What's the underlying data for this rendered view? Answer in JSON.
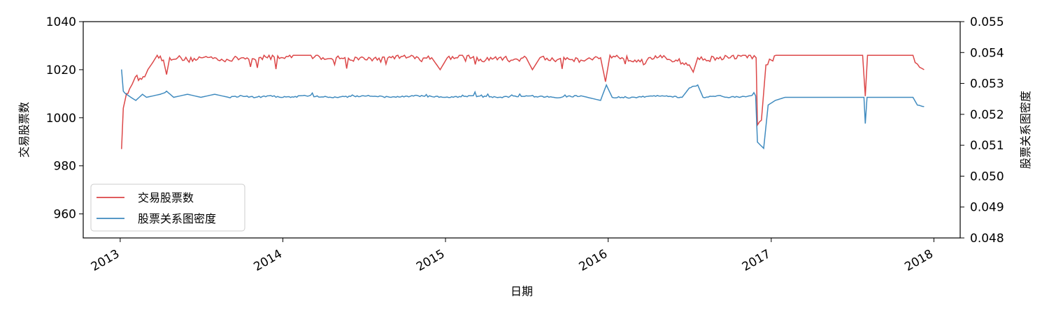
{
  "chart_data": {
    "type": "line",
    "xlabel": "日期",
    "ylabel_left": "交易股票数",
    "ylabel_right": "股票关系图密度",
    "x_ticks": [
      "2013",
      "2014",
      "2015",
      "2016",
      "2017",
      "2018"
    ],
    "y_left_ticks": [
      "960",
      "980",
      "1000",
      "1020",
      "1040"
    ],
    "y_right_ticks": [
      "0.048",
      "0.049",
      "0.050",
      "0.051",
      "0.052",
      "0.053",
      "0.054",
      "0.055"
    ],
    "xlim": [
      "2012-10-10",
      "2018-03-01"
    ],
    "ylim_left": [
      950,
      1040
    ],
    "ylim_right": [
      0.048,
      0.055
    ],
    "grid": false,
    "legend_position": "lower-left",
    "colors": {
      "series_left": "#d62728",
      "series_right": "#1f77b4"
    },
    "series": [
      {
        "name": "交易股票数",
        "axis": "left",
        "points": [
          [
            "2013-01-04",
            987
          ],
          [
            "2013-01-08",
            1004
          ],
          [
            "2013-01-15",
            1010
          ],
          [
            "2013-01-22",
            1012
          ],
          [
            "2013-01-28",
            1014
          ],
          [
            "2013-02-04",
            1017
          ],
          [
            "2013-02-18",
            1016
          ],
          [
            "2013-02-25",
            1017
          ],
          [
            "2013-03-04",
            1020
          ],
          [
            "2013-03-15",
            1023
          ],
          [
            "2013-03-25",
            1026
          ],
          [
            "2013-04-08",
            1024
          ],
          [
            "2013-04-15",
            1018
          ],
          [
            "2013-04-22",
            1025
          ],
          [
            "2013-05-10",
            1025
          ],
          [
            "2013-06-01",
            1024
          ],
          [
            "2013-07-01",
            1025
          ],
          [
            "2013-08-01",
            1025
          ],
          [
            "2013-09-01",
            1024
          ],
          [
            "2013-10-01",
            1025
          ],
          [
            "2013-11-01",
            1024
          ],
          [
            "2013-12-01",
            1026
          ],
          [
            "2014-01-01",
            1025
          ],
          [
            "2014-02-01",
            1026
          ],
          [
            "2014-03-01",
            1026
          ],
          [
            "2014-04-01",
            1025
          ],
          [
            "2014-05-01",
            1025
          ],
          [
            "2014-06-01",
            1024
          ],
          [
            "2014-07-01",
            1025
          ],
          [
            "2014-08-01",
            1024
          ],
          [
            "2014-09-01",
            1025
          ],
          [
            "2014-10-01",
            1026
          ],
          [
            "2014-11-01",
            1025
          ],
          [
            "2014-12-01",
            1025
          ],
          [
            "2014-12-20",
            1020
          ],
          [
            "2015-01-05",
            1025
          ],
          [
            "2015-02-01",
            1026
          ],
          [
            "2015-03-01",
            1025
          ],
          [
            "2015-04-01",
            1024
          ],
          [
            "2015-05-01",
            1025
          ],
          [
            "2015-06-01",
            1024
          ],
          [
            "2015-07-01",
            1025
          ],
          [
            "2015-07-15",
            1020
          ],
          [
            "2015-08-01",
            1025
          ],
          [
            "2015-09-01",
            1024
          ],
          [
            "2015-10-01",
            1025
          ],
          [
            "2015-11-01",
            1024
          ],
          [
            "2015-12-15",
            1025
          ],
          [
            "2015-12-26",
            1015
          ],
          [
            "2016-01-05",
            1026
          ],
          [
            "2016-02-01",
            1025
          ],
          [
            "2016-03-01",
            1024
          ],
          [
            "2016-04-01",
            1025
          ],
          [
            "2016-05-01",
            1025
          ],
          [
            "2016-06-01",
            1024
          ],
          [
            "2016-07-01",
            1022
          ],
          [
            "2016-07-10",
            1019
          ],
          [
            "2016-07-20",
            1025
          ],
          [
            "2016-08-01",
            1024
          ],
          [
            "2016-09-01",
            1025
          ],
          [
            "2016-10-01",
            1025
          ],
          [
            "2016-11-15",
            1026
          ],
          [
            "2016-11-28",
            1025
          ],
          [
            "2016-12-01",
            997
          ],
          [
            "2016-12-10",
            999
          ],
          [
            "2016-12-20",
            1022
          ],
          [
            "2017-01-01",
            1024
          ],
          [
            "2017-01-15",
            1026
          ],
          [
            "2017-02-01",
            1026
          ],
          [
            "2017-04-01",
            1026
          ],
          [
            "2017-06-01",
            1026
          ],
          [
            "2017-07-25",
            1026
          ],
          [
            "2017-07-31",
            1009
          ],
          [
            "2017-08-05",
            1026
          ],
          [
            "2017-09-01",
            1026
          ],
          [
            "2017-10-01",
            1026
          ],
          [
            "2017-11-15",
            1026
          ],
          [
            "2017-11-20",
            1023
          ],
          [
            "2017-11-30",
            1021
          ],
          [
            "2017-12-10",
            1020
          ]
        ]
      },
      {
        "name": "股票关系图密度",
        "axis": "right",
        "points": [
          [
            "2013-01-04",
            0.05345
          ],
          [
            "2013-01-08",
            0.05275
          ],
          [
            "2013-01-15",
            0.05265
          ],
          [
            "2013-01-25",
            0.05255
          ],
          [
            "2013-02-05",
            0.05245
          ],
          [
            "2013-02-20",
            0.05265
          ],
          [
            "2013-03-01",
            0.05255
          ],
          [
            "2013-04-01",
            0.05265
          ],
          [
            "2013-04-15",
            0.05275
          ],
          [
            "2013-05-01",
            0.05255
          ],
          [
            "2013-06-01",
            0.05265
          ],
          [
            "2013-07-01",
            0.05255
          ],
          [
            "2013-08-01",
            0.05265
          ],
          [
            "2013-09-01",
            0.05255
          ],
          [
            "2013-10-01",
            0.0526
          ],
          [
            "2013-11-01",
            0.05255
          ],
          [
            "2013-12-01",
            0.0526
          ],
          [
            "2014-01-01",
            0.05255
          ],
          [
            "2014-03-01",
            0.0526
          ],
          [
            "2014-05-01",
            0.05255
          ],
          [
            "2014-07-01",
            0.0526
          ],
          [
            "2014-09-01",
            0.05255
          ],
          [
            "2014-11-01",
            0.0526
          ],
          [
            "2015-01-01",
            0.05255
          ],
          [
            "2015-03-01",
            0.0526
          ],
          [
            "2015-05-01",
            0.05255
          ],
          [
            "2015-07-01",
            0.0526
          ],
          [
            "2015-09-01",
            0.05255
          ],
          [
            "2015-11-01",
            0.0526
          ],
          [
            "2015-12-15",
            0.05245
          ],
          [
            "2015-12-28",
            0.05295
          ],
          [
            "2016-01-10",
            0.05255
          ],
          [
            "2016-03-01",
            0.05255
          ],
          [
            "2016-05-01",
            0.0526
          ],
          [
            "2016-06-15",
            0.05255
          ],
          [
            "2016-07-01",
            0.05285
          ],
          [
            "2016-07-20",
            0.05295
          ],
          [
            "2016-08-01",
            0.05255
          ],
          [
            "2016-09-01",
            0.0526
          ],
          [
            "2016-10-01",
            0.05255
          ],
          [
            "2016-11-15",
            0.0526
          ],
          [
            "2016-11-27",
            0.0526
          ],
          [
            "2016-12-01",
            0.0511
          ],
          [
            "2016-12-15",
            0.0509
          ],
          [
            "2016-12-25",
            0.0523
          ],
          [
            "2017-01-10",
            0.05245
          ],
          [
            "2017-02-01",
            0.05255
          ],
          [
            "2017-04-01",
            0.05255
          ],
          [
            "2017-06-01",
            0.05255
          ],
          [
            "2017-07-28",
            0.05255
          ],
          [
            "2017-07-31",
            0.0517
          ],
          [
            "2017-08-04",
            0.05255
          ],
          [
            "2017-10-01",
            0.05255
          ],
          [
            "2017-11-15",
            0.05255
          ],
          [
            "2017-11-25",
            0.0523
          ],
          [
            "2017-12-10",
            0.05225
          ]
        ]
      }
    ]
  }
}
